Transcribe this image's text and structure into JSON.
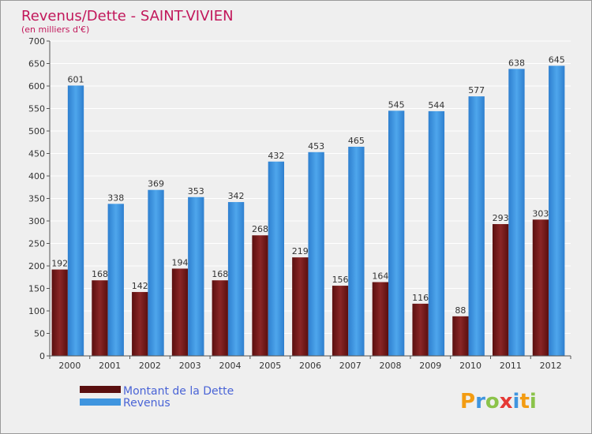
{
  "chart_data": {
    "type": "bar",
    "title": "Revenus/Dette - SAINT-VIVIEN",
    "subtitle": "(en milliers d'€)",
    "categories": [
      "2000",
      "2001",
      "2002",
      "2003",
      "2004",
      "2005",
      "2006",
      "2007",
      "2008",
      "2009",
      "2010",
      "2011",
      "2012"
    ],
    "series": [
      {
        "name": "Montant de la Dette",
        "color": "#7a1a1a",
        "values": [
          192,
          168,
          142,
          194,
          168,
          268,
          219,
          156,
          164,
          116,
          88,
          293,
          303
        ]
      },
      {
        "name": "Revenus",
        "color": "#3f95df",
        "values": [
          601,
          338,
          369,
          353,
          342,
          432,
          453,
          465,
          545,
          544,
          577,
          638,
          645
        ]
      }
    ],
    "ylim": [
      0,
      700
    ],
    "yticks": [
      0,
      50,
      100,
      150,
      200,
      250,
      300,
      350,
      400,
      450,
      500,
      550,
      600,
      650,
      700
    ],
    "grid": true,
    "legend": "bottom-left"
  },
  "brand": "Proxiti"
}
